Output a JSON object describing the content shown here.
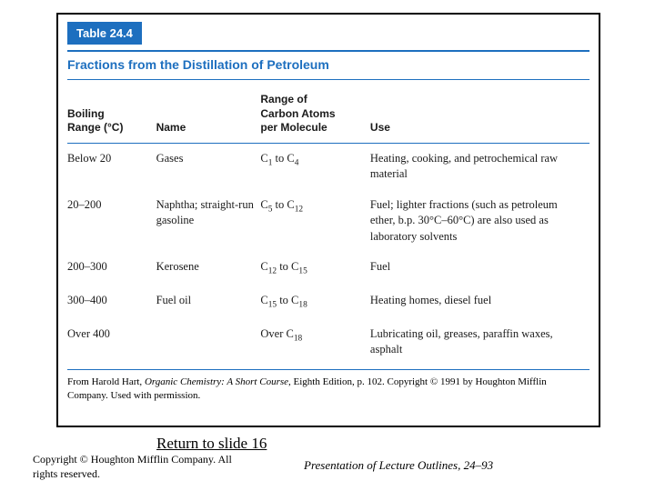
{
  "accent_color": "#1d6fbf",
  "table_tag": "Table 24.4",
  "table_title": "Fractions from the Distillation of Petroleum",
  "columns": {
    "boiling": "Boiling\nRange (°C)",
    "name": "Name",
    "carbon": "Range of\nCarbon Atoms\nper Molecule",
    "use": "Use"
  },
  "rows": [
    {
      "boiling": "Below 20",
      "name": "Gases",
      "carbon_html": "C<span class='sub'>1</span> to C<span class='sub'>4</span>",
      "use": "Heating, cooking, and petrochemical raw material"
    },
    {
      "boiling": "20–200",
      "name": "Naphtha; straight-run gasoline",
      "carbon_html": "C<span class='sub'>5</span> to C<span class='sub'>12</span>",
      "use": "Fuel; lighter fractions (such as petroleum ether, b.p. 30°C–60°C) are also used as laboratory solvents"
    },
    {
      "boiling": "200–300",
      "name": "Kerosene",
      "carbon_html": "C<span class='sub'>12</span> to C<span class='sub'>15</span>",
      "use": "Fuel"
    },
    {
      "boiling": "300–400",
      "name": "Fuel oil",
      "carbon_html": "C<span class='sub'>15</span> to C<span class='sub'>18</span>",
      "use": "Heating homes, diesel fuel"
    },
    {
      "boiling": "Over 400",
      "name": "",
      "carbon_html": "Over C<span class='sub'>18</span>",
      "use": "Lubricating oil, greases, paraffin waxes, asphalt"
    }
  ],
  "source_html": "From Harold Hart, <i>Organic Chemistry: A Short Course</i>, Eighth Edition, p. 102. Copyright © 1991 by Houghton Mifflin Company. Used with permission.",
  "return_link": "Return to slide 16",
  "copyright": "Copyright © Houghton Mifflin Company. All rights reserved.",
  "footer_right": "Presentation of Lecture Outlines, 24–93"
}
